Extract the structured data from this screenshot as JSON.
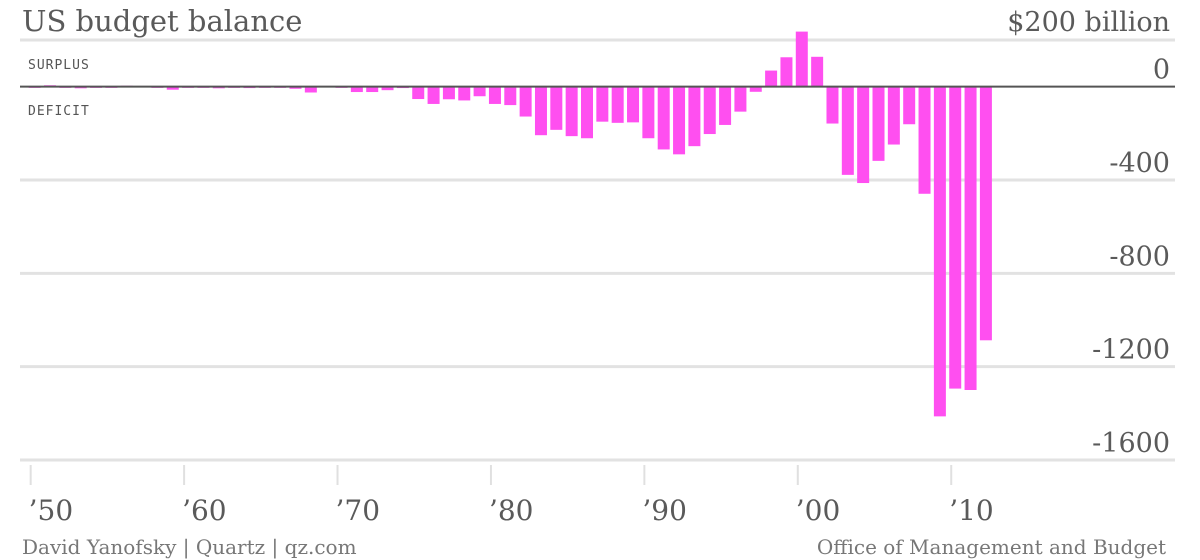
{
  "chart_data": {
    "type": "bar",
    "title": "US budget balance",
    "y_top_label": "$200 billion",
    "annotations": {
      "surplus": "SURPLUS",
      "deficit": "DEFICIT"
    },
    "ylim": [
      -1600,
      200
    ],
    "y_ticks": [
      {
        "value": 0,
        "label": "0"
      },
      {
        "value": -400,
        "label": "-400"
      },
      {
        "value": -800,
        "label": "-800"
      },
      {
        "value": -1200,
        "label": "-1200"
      },
      {
        "value": -1600,
        "label": "-1600"
      }
    ],
    "grid_values": [
      200,
      0,
      -400,
      -800,
      -1200,
      -1600
    ],
    "x_range": [
      1949.5,
      2022.5
    ],
    "x_ticks": [
      {
        "value": 1950,
        "label": "’50"
      },
      {
        "value": 1960,
        "label": "’60"
      },
      {
        "value": 1970,
        "label": "’70"
      },
      {
        "value": 1980,
        "label": "’80"
      },
      {
        "value": 1990,
        "label": "’90"
      },
      {
        "value": 2000,
        "label": "’00"
      },
      {
        "value": 2010,
        "label": "’10"
      }
    ],
    "bar_color": "#ff4ff0",
    "years": [
      1950,
      1951,
      1952,
      1953,
      1954,
      1955,
      1956,
      1957,
      1958,
      1959,
      1960,
      1961,
      1962,
      1963,
      1964,
      1965,
      1966,
      1967,
      1968,
      1969,
      1970,
      1971,
      1972,
      1973,
      1974,
      1975,
      1976,
      1977,
      1978,
      1979,
      1980,
      1981,
      1982,
      1983,
      1984,
      1985,
      1986,
      1987,
      1988,
      1989,
      1990,
      1991,
      1992,
      1993,
      1994,
      1995,
      1996,
      1997,
      1998,
      1999,
      2000,
      2001,
      2002,
      2003,
      2004,
      2005,
      2006,
      2007,
      2008,
      2009,
      2010,
      2011,
      2012
    ],
    "values": [
      -3,
      6,
      -1,
      -7,
      -1,
      -3,
      4,
      3,
      -3,
      -13,
      0,
      -3,
      -7,
      -5,
      -6,
      -1,
      -4,
      -9,
      -25,
      3,
      -3,
      -23,
      -23,
      -15,
      -6,
      -53,
      -74,
      -54,
      -59,
      -41,
      -74,
      -79,
      -128,
      -208,
      -185,
      -212,
      -221,
      -150,
      -155,
      -153,
      -221,
      -269,
      -290,
      -255,
      -203,
      -164,
      -107,
      -22,
      69,
      126,
      236,
      128,
      -158,
      -378,
      -413,
      -318,
      -248,
      -161,
      -459,
      -1413,
      -1294,
      -1300,
      -1087
    ]
  },
  "footer": {
    "left": "David Yanofsky | Quartz | qz.com",
    "right": "Office of Management and Budget"
  }
}
